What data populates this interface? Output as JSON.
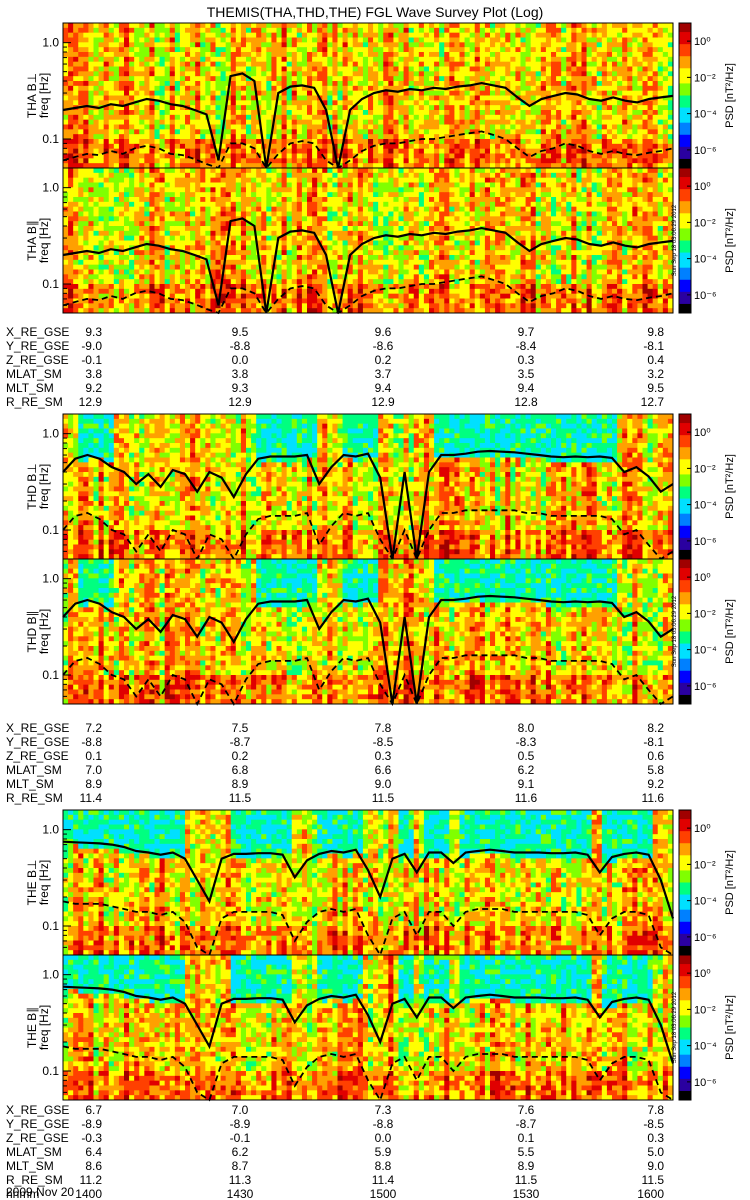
{
  "title": "THEMIS(THA,THD,THE) FGL Wave Survey Plot (Log)",
  "date_label": "2009 Nov 20",
  "colorbar": {
    "label": "PSD [nT²/Hz]",
    "tick_values": [
      "10⁰",
      "10⁻²",
      "10⁻⁴",
      "10⁻⁶"
    ],
    "log_range": [
      -7,
      1
    ]
  },
  "timestamp_text": "Sun Sep 18 03:06:29 2012",
  "chart_data": [
    {
      "type": "heatmap",
      "probe": "THA",
      "component": "perp",
      "panel_label": "THA B⊥",
      "ylabel": "freq [Hz]",
      "yscale": "log",
      "ylim": [
        0.05,
        1.6
      ],
      "yticks": [
        "1.0",
        "0.1"
      ],
      "solid_line": [
        0.2,
        0.21,
        0.22,
        0.21,
        0.23,
        0.22,
        0.24,
        0.26,
        0.25,
        0.23,
        0.22,
        0.2,
        0.18,
        0.06,
        0.45,
        0.48,
        0.4,
        0.05,
        0.3,
        0.35,
        0.36,
        0.34,
        0.2,
        0.05,
        0.2,
        0.26,
        0.3,
        0.32,
        0.31,
        0.33,
        0.32,
        0.34,
        0.33,
        0.35,
        0.36,
        0.38,
        0.36,
        0.34,
        0.27,
        0.22,
        0.26,
        0.28,
        0.3,
        0.29,
        0.26,
        0.25,
        0.27,
        0.25,
        0.24,
        0.26,
        0.27,
        0.28
      ],
      "dashed_line": [
        0.06,
        0.065,
        0.07,
        0.068,
        0.075,
        0.07,
        0.08,
        0.085,
        0.08,
        0.07,
        0.068,
        0.062,
        0.055,
        0.03,
        0.09,
        0.09,
        0.08,
        0.03,
        0.07,
        0.09,
        0.095,
        0.09,
        0.06,
        0.03,
        0.06,
        0.075,
        0.085,
        0.09,
        0.09,
        0.095,
        0.1,
        0.1,
        0.105,
        0.11,
        0.115,
        0.12,
        0.11,
        0.1,
        0.08,
        0.065,
        0.075,
        0.08,
        0.09,
        0.085,
        0.075,
        0.07,
        0.075,
        0.07,
        0.068,
        0.072,
        0.075,
        0.08
      ]
    },
    {
      "type": "heatmap",
      "probe": "THA",
      "component": "par",
      "panel_label": "THA B∥",
      "ylabel": "freq [Hz]",
      "yscale": "log",
      "ylim": [
        0.05,
        1.6
      ],
      "yticks": [
        "1.0",
        "0.1"
      ],
      "solid_line": [
        0.2,
        0.21,
        0.22,
        0.21,
        0.23,
        0.22,
        0.24,
        0.26,
        0.25,
        0.23,
        0.22,
        0.2,
        0.18,
        0.06,
        0.45,
        0.48,
        0.4,
        0.05,
        0.3,
        0.35,
        0.36,
        0.34,
        0.2,
        0.05,
        0.2,
        0.26,
        0.3,
        0.32,
        0.31,
        0.33,
        0.32,
        0.34,
        0.33,
        0.35,
        0.36,
        0.38,
        0.36,
        0.34,
        0.27,
        0.22,
        0.26,
        0.28,
        0.3,
        0.29,
        0.26,
        0.25,
        0.27,
        0.25,
        0.24,
        0.26,
        0.27,
        0.28
      ],
      "dashed_line": [
        0.06,
        0.065,
        0.07,
        0.068,
        0.075,
        0.07,
        0.08,
        0.085,
        0.08,
        0.07,
        0.068,
        0.062,
        0.055,
        0.03,
        0.09,
        0.09,
        0.08,
        0.03,
        0.07,
        0.09,
        0.095,
        0.09,
        0.06,
        0.03,
        0.06,
        0.075,
        0.085,
        0.09,
        0.09,
        0.095,
        0.1,
        0.1,
        0.105,
        0.11,
        0.115,
        0.12,
        0.11,
        0.1,
        0.08,
        0.065,
        0.075,
        0.08,
        0.09,
        0.085,
        0.075,
        0.07,
        0.075,
        0.07,
        0.068,
        0.072,
        0.075,
        0.08
      ]
    },
    {
      "type": "heatmap",
      "probe": "THD",
      "component": "perp",
      "panel_label": "THD B⊥",
      "ylabel": "freq [Hz]",
      "yscale": "log",
      "ylim": [
        0.05,
        1.6
      ],
      "yticks": [
        "1.0",
        "0.1"
      ],
      "solid_line": [
        0.4,
        0.55,
        0.6,
        0.55,
        0.45,
        0.4,
        0.3,
        0.38,
        0.28,
        0.42,
        0.38,
        0.25,
        0.4,
        0.35,
        0.22,
        0.38,
        0.55,
        0.58,
        0.58,
        0.58,
        0.6,
        0.3,
        0.45,
        0.6,
        0.58,
        0.62,
        0.35,
        0.05,
        0.4,
        0.05,
        0.4,
        0.6,
        0.6,
        0.62,
        0.65,
        0.66,
        0.65,
        0.64,
        0.62,
        0.6,
        0.58,
        0.57,
        0.58,
        0.57,
        0.58,
        0.56,
        0.4,
        0.45,
        0.36,
        0.25,
        0.3
      ],
      "dashed_line": [
        0.1,
        0.14,
        0.15,
        0.13,
        0.1,
        0.09,
        0.06,
        0.09,
        0.06,
        0.1,
        0.09,
        0.05,
        0.09,
        0.08,
        0.05,
        0.09,
        0.13,
        0.14,
        0.14,
        0.14,
        0.15,
        0.07,
        0.11,
        0.15,
        0.14,
        0.15,
        0.08,
        0.03,
        0.1,
        0.03,
        0.1,
        0.15,
        0.15,
        0.16,
        0.16,
        0.16,
        0.16,
        0.16,
        0.15,
        0.15,
        0.14,
        0.14,
        0.14,
        0.14,
        0.14,
        0.13,
        0.09,
        0.1,
        0.07,
        0.05,
        0.06
      ]
    },
    {
      "type": "heatmap",
      "probe": "THD",
      "component": "par",
      "panel_label": "THD B∥",
      "ylabel": "freq [Hz]",
      "yscale": "log",
      "ylim": [
        0.05,
        1.6
      ],
      "yticks": [
        "1.0",
        "0.1"
      ],
      "solid_line": [
        0.4,
        0.55,
        0.6,
        0.55,
        0.45,
        0.4,
        0.3,
        0.38,
        0.28,
        0.42,
        0.38,
        0.25,
        0.4,
        0.35,
        0.22,
        0.38,
        0.55,
        0.58,
        0.58,
        0.58,
        0.6,
        0.3,
        0.45,
        0.6,
        0.58,
        0.62,
        0.35,
        0.05,
        0.4,
        0.05,
        0.4,
        0.6,
        0.6,
        0.62,
        0.65,
        0.66,
        0.65,
        0.64,
        0.62,
        0.6,
        0.58,
        0.57,
        0.58,
        0.57,
        0.58,
        0.56,
        0.4,
        0.45,
        0.36,
        0.25,
        0.3
      ],
      "dashed_line": [
        0.1,
        0.14,
        0.15,
        0.13,
        0.1,
        0.09,
        0.06,
        0.09,
        0.06,
        0.1,
        0.09,
        0.05,
        0.09,
        0.08,
        0.05,
        0.09,
        0.13,
        0.14,
        0.14,
        0.14,
        0.15,
        0.07,
        0.11,
        0.15,
        0.14,
        0.15,
        0.08,
        0.03,
        0.1,
        0.03,
        0.1,
        0.15,
        0.15,
        0.16,
        0.16,
        0.16,
        0.16,
        0.16,
        0.15,
        0.15,
        0.14,
        0.14,
        0.14,
        0.14,
        0.14,
        0.13,
        0.09,
        0.1,
        0.07,
        0.05,
        0.06
      ]
    },
    {
      "type": "heatmap",
      "probe": "THE",
      "component": "perp",
      "panel_label": "THE B⊥",
      "ylabel": "freq [Hz]",
      "yscale": "log",
      "ylim": [
        0.05,
        1.6
      ],
      "yticks": [
        "1.0",
        "0.1"
      ],
      "solid_line": [
        0.75,
        0.74,
        0.73,
        0.72,
        0.7,
        0.66,
        0.6,
        0.58,
        0.55,
        0.58,
        0.5,
        0.3,
        0.18,
        0.5,
        0.56,
        0.56,
        0.57,
        0.57,
        0.55,
        0.32,
        0.48,
        0.56,
        0.6,
        0.58,
        0.62,
        0.38,
        0.2,
        0.5,
        0.56,
        0.36,
        0.58,
        0.58,
        0.45,
        0.58,
        0.6,
        0.62,
        0.6,
        0.58,
        0.58,
        0.58,
        0.57,
        0.57,
        0.58,
        0.55,
        0.36,
        0.52,
        0.56,
        0.58,
        0.55,
        0.3,
        0.12
      ],
      "dashed_line": [
        0.18,
        0.17,
        0.17,
        0.17,
        0.16,
        0.15,
        0.14,
        0.14,
        0.13,
        0.14,
        0.11,
        0.06,
        0.04,
        0.12,
        0.14,
        0.14,
        0.14,
        0.14,
        0.13,
        0.07,
        0.11,
        0.14,
        0.15,
        0.14,
        0.15,
        0.08,
        0.04,
        0.12,
        0.14,
        0.08,
        0.14,
        0.14,
        0.1,
        0.14,
        0.15,
        0.15,
        0.15,
        0.14,
        0.14,
        0.14,
        0.14,
        0.14,
        0.14,
        0.13,
        0.08,
        0.12,
        0.14,
        0.14,
        0.13,
        0.06,
        0.03
      ]
    },
    {
      "type": "heatmap",
      "probe": "THE",
      "component": "par",
      "panel_label": "THE B∥",
      "ylabel": "freq [Hz]",
      "yscale": "log",
      "ylim": [
        0.05,
        1.6
      ],
      "yticks": [
        "1.0",
        "0.1"
      ],
      "solid_line": [
        0.75,
        0.74,
        0.73,
        0.72,
        0.7,
        0.66,
        0.6,
        0.58,
        0.55,
        0.58,
        0.5,
        0.3,
        0.18,
        0.5,
        0.56,
        0.56,
        0.57,
        0.57,
        0.55,
        0.32,
        0.48,
        0.56,
        0.6,
        0.58,
        0.62,
        0.38,
        0.2,
        0.5,
        0.56,
        0.36,
        0.58,
        0.58,
        0.45,
        0.58,
        0.6,
        0.62,
        0.6,
        0.58,
        0.58,
        0.58,
        0.57,
        0.57,
        0.58,
        0.55,
        0.36,
        0.52,
        0.56,
        0.58,
        0.55,
        0.3,
        0.12
      ],
      "dashed_line": [
        0.18,
        0.17,
        0.17,
        0.17,
        0.16,
        0.15,
        0.14,
        0.14,
        0.13,
        0.14,
        0.11,
        0.06,
        0.04,
        0.12,
        0.14,
        0.14,
        0.14,
        0.14,
        0.13,
        0.07,
        0.11,
        0.14,
        0.15,
        0.14,
        0.15,
        0.08,
        0.04,
        0.12,
        0.14,
        0.08,
        0.14,
        0.14,
        0.1,
        0.14,
        0.15,
        0.15,
        0.15,
        0.14,
        0.14,
        0.14,
        0.14,
        0.14,
        0.14,
        0.13,
        0.08,
        0.12,
        0.14,
        0.14,
        0.13,
        0.06,
        0.03
      ]
    }
  ],
  "ephemeris": [
    {
      "probe": "THA",
      "rows": [
        {
          "label": "X_RE_GSE",
          "values": [
            "9.3",
            "9.5",
            "9.6",
            "9.7",
            "9.8"
          ]
        },
        {
          "label": "Y_RE_GSE",
          "values": [
            "-9.0",
            "-8.8",
            "-8.6",
            "-8.4",
            "-8.1"
          ]
        },
        {
          "label": "Z_RE_GSE",
          "values": [
            "-0.1",
            "0.0",
            "0.2",
            "0.3",
            "0.4"
          ]
        },
        {
          "label": "MLAT_SM",
          "values": [
            "3.8",
            "3.8",
            "3.7",
            "3.5",
            "3.2"
          ]
        },
        {
          "label": "MLT_SM",
          "values": [
            "9.2",
            "9.3",
            "9.4",
            "9.4",
            "9.5"
          ]
        },
        {
          "label": "R_RE_SM",
          "values": [
            "12.9",
            "12.9",
            "12.9",
            "12.8",
            "12.7"
          ]
        }
      ]
    },
    {
      "probe": "THD",
      "rows": [
        {
          "label": "X_RE_GSE",
          "values": [
            "7.2",
            "7.5",
            "7.8",
            "8.0",
            "8.2"
          ]
        },
        {
          "label": "Y_RE_GSE",
          "values": [
            "-8.8",
            "-8.7",
            "-8.5",
            "-8.3",
            "-8.1"
          ]
        },
        {
          "label": "Z_RE_GSE",
          "values": [
            "0.1",
            "0.2",
            "0.3",
            "0.5",
            "0.6"
          ]
        },
        {
          "label": "MLAT_SM",
          "values": [
            "7.0",
            "6.8",
            "6.6",
            "6.2",
            "5.8"
          ]
        },
        {
          "label": "MLT_SM",
          "values": [
            "8.9",
            "8.9",
            "9.0",
            "9.1",
            "9.2"
          ]
        },
        {
          "label": "R_RE_SM",
          "values": [
            "11.4",
            "11.5",
            "11.5",
            "11.6",
            "11.6"
          ]
        }
      ]
    },
    {
      "probe": "THE",
      "rows": [
        {
          "label": "X_RE_GSE",
          "values": [
            "6.7",
            "7.0",
            "7.3",
            "7.6",
            "7.8"
          ]
        },
        {
          "label": "Y_RE_GSE",
          "values": [
            "-8.9",
            "-8.9",
            "-8.8",
            "-8.7",
            "-8.5"
          ]
        },
        {
          "label": "Z_RE_GSE",
          "values": [
            "-0.3",
            "-0.1",
            "0.0",
            "0.1",
            "0.3"
          ]
        },
        {
          "label": "MLAT_SM",
          "values": [
            "6.4",
            "6.2",
            "5.9",
            "5.5",
            "5.0"
          ]
        },
        {
          "label": "MLT_SM",
          "values": [
            "8.6",
            "8.7",
            "8.8",
            "8.9",
            "9.0"
          ]
        },
        {
          "label": "R_RE_SM",
          "values": [
            "11.2",
            "11.3",
            "11.4",
            "11.5",
            "11.5"
          ]
        },
        {
          "label": "hhmm",
          "values": [
            "1400",
            "1430",
            "1500",
            "1530",
            "1600"
          ]
        }
      ]
    }
  ],
  "colormap": [
    "#000000",
    "#2a00a0",
    "#0000ff",
    "#0080ff",
    "#00e0ff",
    "#00ff80",
    "#80ff00",
    "#ffff00",
    "#ffa000",
    "#ff4000",
    "#e00000",
    "#a00000"
  ]
}
